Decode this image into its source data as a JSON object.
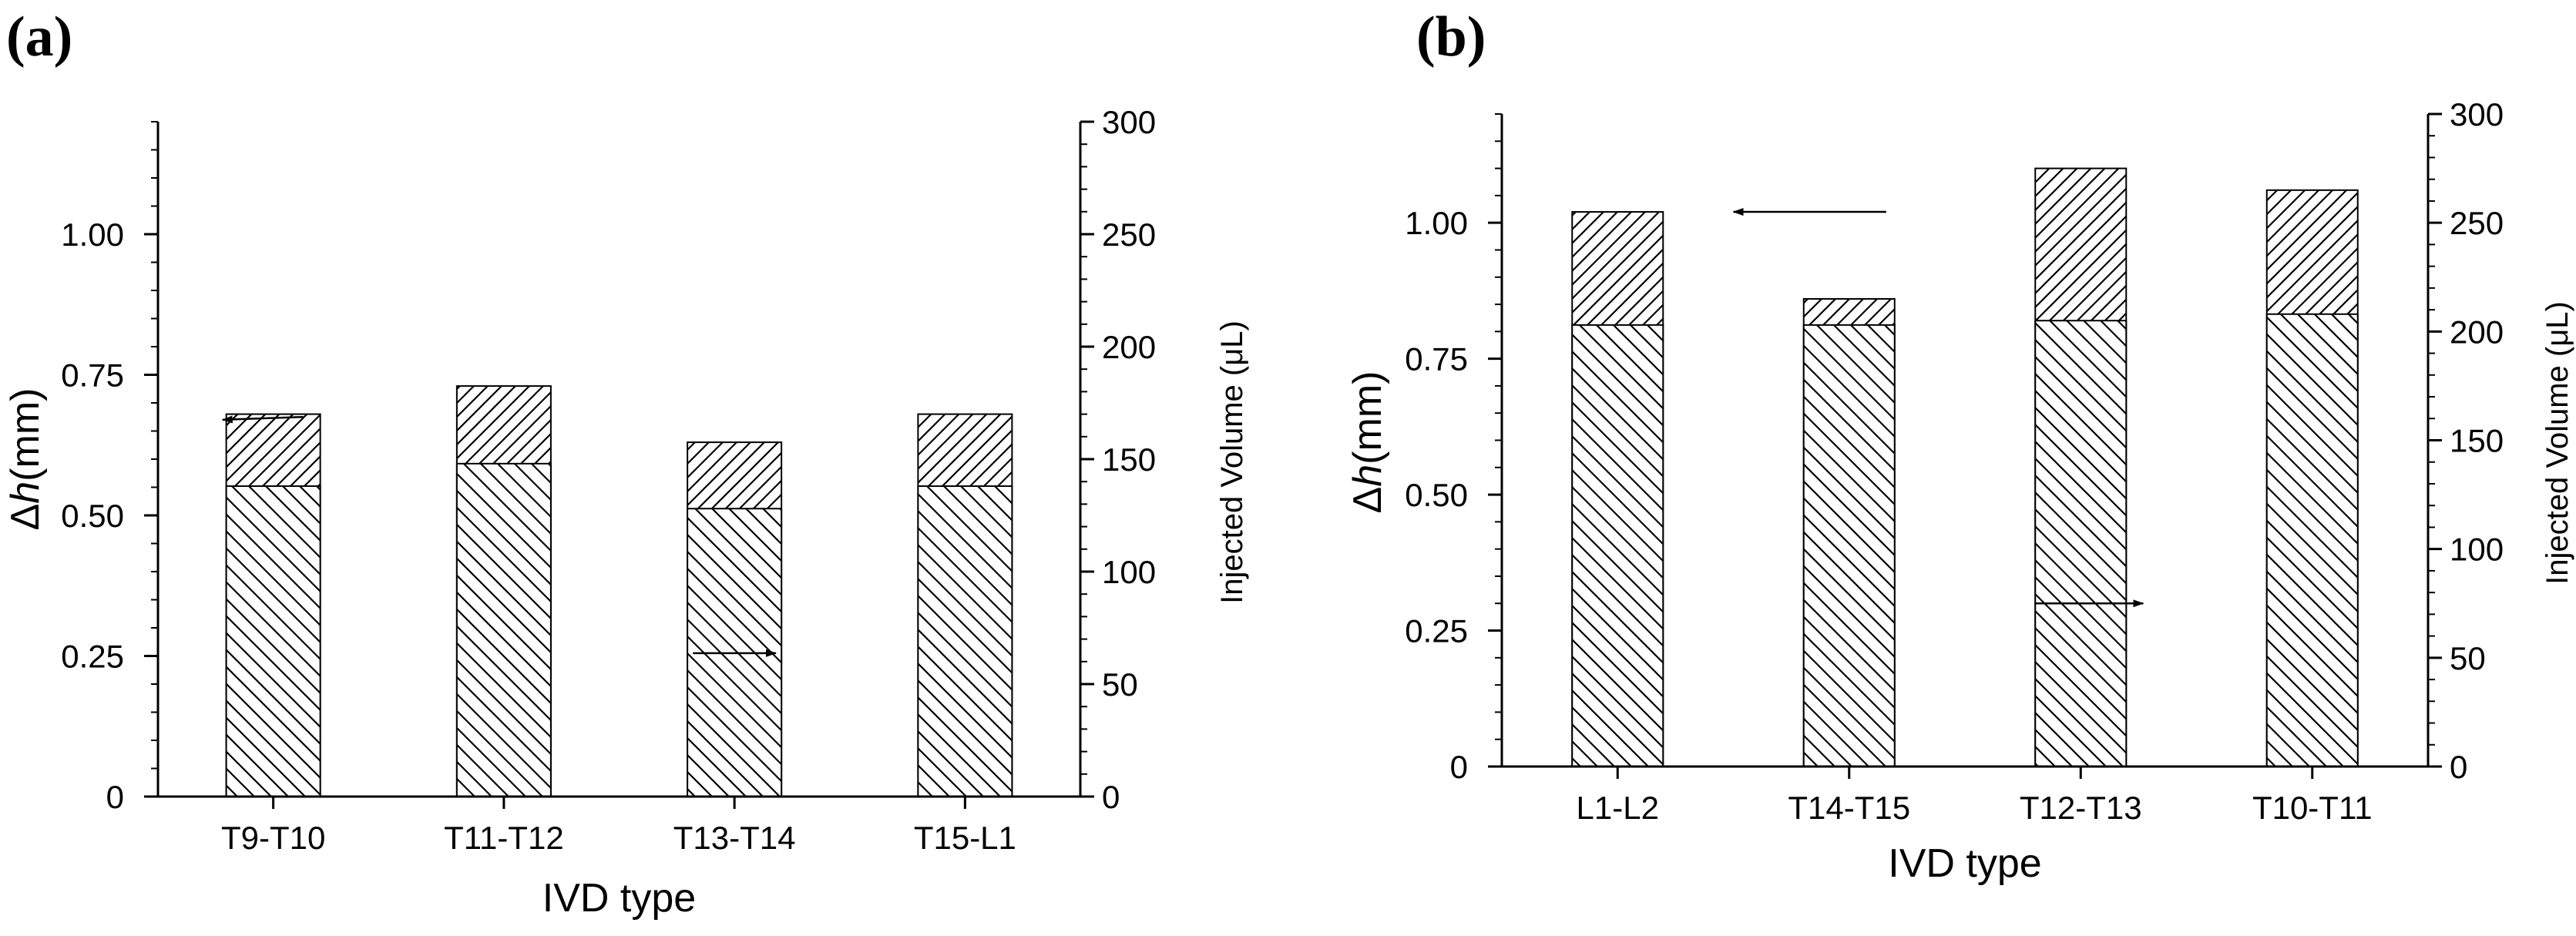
{
  "chart_data": [
    {
      "panel": "(a)",
      "type": "bar",
      "stacked": true,
      "xlabel": "IVD type",
      "ylabel_left_delta": "Δ",
      "ylabel_left_var": "h",
      "ylabel_left_unit": "(mm)",
      "ylabel_right": "Injected Volume (μL)",
      "categories": [
        "T9-T10",
        "T11-T12",
        "T13-T14",
        "T15-L1"
      ],
      "ylim_left": [
        0,
        1.2
      ],
      "ylim_right": [
        0,
        300
      ],
      "left_ticks": [
        0,
        0.25,
        0.5,
        0.75,
        1.0
      ],
      "left_tick_labels": [
        "0",
        "0.25",
        "0.50",
        "0.75",
        "1.00"
      ],
      "right_ticks": [
        0,
        50,
        100,
        150,
        200,
        250,
        300
      ],
      "right_tick_labels": [
        "0",
        "50",
        "100",
        "150",
        "200",
        "250",
        "300"
      ],
      "series": [
        {
          "name": "Injected Volume (μL)",
          "axis": "right",
          "hatch": "backslash",
          "values": [
            138,
            148,
            128,
            138
          ]
        },
        {
          "name": "Δh (mm)",
          "axis": "left",
          "hatch": "slash",
          "values": [
            0.68,
            0.73,
            0.63,
            0.68
          ]
        }
      ],
      "annotations": [
        {
          "arrow": "left",
          "points_to": "Δh (mm) axis",
          "from": [
            0.63,
            0.675
          ],
          "to": [
            0.28,
            0.67
          ]
        },
        {
          "arrow": "right",
          "points_to": "Injected Volume axis",
          "from": [
            2.32,
            0.255
          ],
          "to": [
            2.68,
            0.255
          ]
        }
      ]
    },
    {
      "panel": "(b)",
      "type": "bar",
      "stacked": true,
      "xlabel": "IVD type",
      "ylabel_left_delta": "Δ",
      "ylabel_left_var": "h",
      "ylabel_left_unit": "(mm)",
      "ylabel_right": "Injected Volume (μL)",
      "categories": [
        "L1-L2",
        "T14-T15",
        "T12-T13",
        "T10-T11"
      ],
      "ylim_left": [
        0,
        1.2
      ],
      "ylim_right": [
        0,
        300
      ],
      "left_ticks": [
        0,
        0.25,
        0.5,
        0.75,
        1.0
      ],
      "left_tick_labels": [
        "0",
        "0.25",
        "0.50",
        "0.75",
        "1.00"
      ],
      "right_ticks": [
        0,
        50,
        100,
        150,
        200,
        250,
        300
      ],
      "right_tick_labels": [
        "0",
        "50",
        "100",
        "150",
        "200",
        "250",
        "300"
      ],
      "series": [
        {
          "name": "Injected Volume (μL)",
          "axis": "right",
          "hatch": "backslash",
          "values": [
            203,
            203,
            205,
            208
          ]
        },
        {
          "name": "Δh (mm)",
          "axis": "left",
          "hatch": "slash",
          "values": [
            1.02,
            0.86,
            1.1,
            1.06
          ]
        }
      ],
      "annotations": [
        {
          "arrow": "left",
          "points_to": "Δh (mm) axis",
          "from": [
            1.66,
            1.02
          ],
          "to": [
            1.0,
            1.02
          ]
        },
        {
          "arrow": "right",
          "points_to": "Injected Volume axis",
          "from": [
            2.3,
            0.3
          ],
          "to": [
            2.77,
            0.3
          ]
        }
      ]
    }
  ]
}
